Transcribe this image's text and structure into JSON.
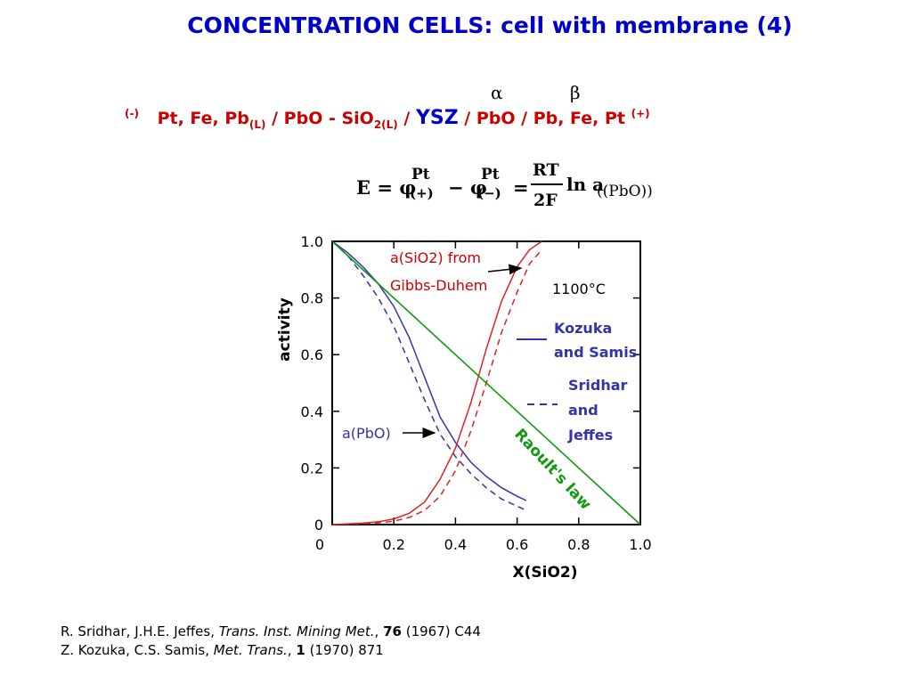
{
  "header": {
    "title": "CONCENTRATION CELLS: cell with membrane (4)",
    "alpha": "α",
    "beta": "β"
  },
  "cell": {
    "neg_sign": "(-)",
    "left_metals": "Pt, Fe, Pb",
    "left_sub": "(L)",
    "slag": " / PbO - SiO",
    "slag_sub": "2(L)",
    "sep1": " / ",
    "membrane": "YSZ",
    "right": " / PbO / Pb, Fe, Pt ",
    "pos_sign": "(+)"
  },
  "equation": {
    "lhs": "E = φ",
    "phi1_sup": "Pt",
    "phi1_sub": "(+)",
    "minus": "− φ",
    "phi2_sup": "Pt",
    "phi2_sub": "(−)",
    "eq": "=",
    "num": "RT",
    "den": "2F",
    "ln": "ln a",
    "ln_sub": "((PbO))"
  },
  "chart_data": {
    "type": "line",
    "xlabel": "X(SiO2)",
    "ylabel": "activity",
    "xlim": [
      0,
      1.0
    ],
    "ylim": [
      0,
      1.0
    ],
    "x_ticks": [
      "0",
      "0.2",
      "0.4",
      "0.6",
      "0.8",
      "1.0"
    ],
    "y_ticks": [
      "0",
      "0.2",
      "0.4",
      "0.6",
      "0.8",
      "1.0"
    ],
    "colors": {
      "pbo": "#3333aa",
      "sio2": "#dd2222",
      "raoult": "#119911",
      "annotation": "#cc0000"
    },
    "series": [
      {
        "name": "a(PbO) Kozuka and Samis",
        "style": "solid",
        "color": "#3333aa",
        "x": [
          0,
          0.05,
          0.1,
          0.15,
          0.2,
          0.25,
          0.3,
          0.35,
          0.4,
          0.45,
          0.5,
          0.55,
          0.6,
          0.63
        ],
        "y": [
          1.0,
          0.96,
          0.91,
          0.85,
          0.77,
          0.66,
          0.52,
          0.38,
          0.29,
          0.22,
          0.17,
          0.13,
          0.1,
          0.085
        ]
      },
      {
        "name": "a(PbO) Sridhar and Jeffes",
        "style": "dashed",
        "color": "#3333aa",
        "x": [
          0,
          0.05,
          0.1,
          0.15,
          0.2,
          0.25,
          0.3,
          0.35,
          0.4,
          0.45,
          0.5,
          0.55,
          0.6,
          0.63
        ],
        "y": [
          1.0,
          0.95,
          0.88,
          0.8,
          0.7,
          0.57,
          0.44,
          0.32,
          0.24,
          0.18,
          0.13,
          0.09,
          0.065,
          0.05
        ]
      },
      {
        "name": "a(SiO2) Kozuka and Samis",
        "style": "solid",
        "color": "#dd2222",
        "x": [
          0,
          0.1,
          0.15,
          0.2,
          0.25,
          0.3,
          0.35,
          0.4,
          0.45,
          0.5,
          0.55,
          0.6,
          0.64,
          0.68
        ],
        "y": [
          0,
          0.005,
          0.01,
          0.02,
          0.04,
          0.08,
          0.16,
          0.27,
          0.43,
          0.62,
          0.79,
          0.91,
          0.97,
          1.0
        ]
      },
      {
        "name": "a(SiO2) Sridhar and Jeffes",
        "style": "dashed",
        "color": "#dd2222",
        "x": [
          0,
          0.1,
          0.15,
          0.2,
          0.25,
          0.3,
          0.35,
          0.4,
          0.45,
          0.5,
          0.55,
          0.6,
          0.64,
          0.68
        ],
        "y": [
          0,
          0.003,
          0.006,
          0.012,
          0.025,
          0.05,
          0.1,
          0.19,
          0.33,
          0.5,
          0.68,
          0.82,
          0.92,
          0.97
        ]
      },
      {
        "name": "Raoult's law",
        "style": "solid",
        "color": "#119911",
        "x": [
          0,
          1.0
        ],
        "y": [
          1.0,
          0.0
        ]
      }
    ],
    "annotations": {
      "sio2_label": "a(SiO2) from",
      "sio2_label2": "Gibbs-Duhem",
      "temperature": "1100°C",
      "kozuka1": "Kozuka",
      "kozuka2": "and Samis",
      "sridhar1": "Sridhar",
      "sridhar2": "and",
      "sridhar3": "Jeffes",
      "pbo_label": "a(PbO)",
      "raoult": "Raoult's law"
    }
  },
  "references": {
    "ref1_authors": "R. Sridhar, J.H.E. Jeffes, ",
    "ref1_journal": "Trans. Inst. Mining Met.",
    "ref1_sep": ", ",
    "ref1_volume": "76",
    "ref1_rest": " (1967) C44",
    "ref2_authors": "Z. Kozuka, C.S. Samis, ",
    "ref2_journal": "Met. Trans.",
    "ref2_sep": ", ",
    "ref2_volume": "1",
    "ref2_rest": " (1970) 871"
  }
}
